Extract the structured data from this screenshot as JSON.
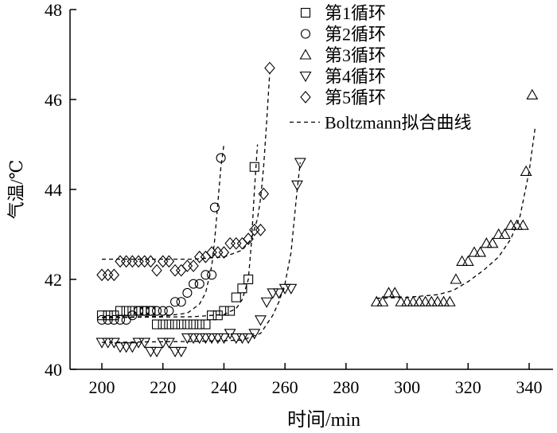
{
  "chart_data": {
    "type": "scatter",
    "xlabel": "时间/min",
    "ylabel": "气温/℃",
    "xlim": [
      190,
      350
    ],
    "ylim": [
      40,
      48
    ],
    "xticks": [
      200,
      220,
      240,
      260,
      280,
      300,
      320,
      340
    ],
    "yticks": [
      40,
      42,
      44,
      46,
      48
    ],
    "grid": false,
    "legend_position": "top-right",
    "fit_label": "Boltzmann拟合曲线",
    "series": [
      {
        "name": "第1循环",
        "marker": "square",
        "points": [
          [
            200,
            41.2
          ],
          [
            202,
            41.2
          ],
          [
            204,
            41.2
          ],
          [
            206,
            41.3
          ],
          [
            208,
            41.3
          ],
          [
            210,
            41.3
          ],
          [
            212,
            41.3
          ],
          [
            214,
            41.3
          ],
          [
            216,
            41.3
          ],
          [
            218,
            41.0
          ],
          [
            220,
            41.0
          ],
          [
            222,
            41.0
          ],
          [
            224,
            41.0
          ],
          [
            226,
            41.0
          ],
          [
            228,
            41.0
          ],
          [
            230,
            41.0
          ],
          [
            232,
            41.0
          ],
          [
            234,
            41.0
          ],
          [
            236,
            41.2
          ],
          [
            238,
            41.2
          ],
          [
            240,
            41.3
          ],
          [
            242,
            41.3
          ],
          [
            244,
            41.6
          ],
          [
            246,
            41.8
          ],
          [
            248,
            42.0
          ],
          [
            250,
            44.5
          ]
        ],
        "fit": [
          [
            200,
            41.15
          ],
          [
            230,
            41.17
          ],
          [
            240,
            41.22
          ],
          [
            244,
            41.35
          ],
          [
            246,
            41.55
          ],
          [
            248,
            42.0
          ],
          [
            249,
            42.8
          ],
          [
            250,
            44.0
          ],
          [
            251,
            45.0
          ]
        ]
      },
      {
        "name": "第2循环",
        "marker": "circle",
        "points": [
          [
            200,
            41.1
          ],
          [
            202,
            41.1
          ],
          [
            204,
            41.1
          ],
          [
            206,
            41.1
          ],
          [
            208,
            41.1
          ],
          [
            210,
            41.2
          ],
          [
            212,
            41.3
          ],
          [
            214,
            41.3
          ],
          [
            216,
            41.3
          ],
          [
            218,
            41.3
          ],
          [
            220,
            41.3
          ],
          [
            222,
            41.3
          ],
          [
            224,
            41.5
          ],
          [
            226,
            41.5
          ],
          [
            228,
            41.7
          ],
          [
            230,
            41.9
          ],
          [
            232,
            41.9
          ],
          [
            234,
            42.1
          ],
          [
            236,
            42.1
          ],
          [
            237,
            43.6
          ],
          [
            239,
            44.7
          ]
        ],
        "fit": [
          [
            200,
            41.15
          ],
          [
            220,
            41.18
          ],
          [
            228,
            41.25
          ],
          [
            232,
            41.45
          ],
          [
            234,
            41.7
          ],
          [
            236,
            42.3
          ],
          [
            237,
            42.9
          ],
          [
            238,
            43.7
          ],
          [
            239,
            44.5
          ],
          [
            240,
            45.0
          ]
        ]
      },
      {
        "name": "第3循环",
        "marker": "triangle-up",
        "points": [
          [
            290,
            41.5
          ],
          [
            292,
            41.5
          ],
          [
            294,
            41.7
          ],
          [
            296,
            41.7
          ],
          [
            298,
            41.5
          ],
          [
            300,
            41.5
          ],
          [
            302,
            41.5
          ],
          [
            304,
            41.5
          ],
          [
            306,
            41.5
          ],
          [
            308,
            41.5
          ],
          [
            310,
            41.5
          ],
          [
            312,
            41.5
          ],
          [
            314,
            41.5
          ],
          [
            316,
            42.0
          ],
          [
            318,
            42.4
          ],
          [
            320,
            42.4
          ],
          [
            322,
            42.6
          ],
          [
            324,
            42.6
          ],
          [
            326,
            42.8
          ],
          [
            328,
            42.8
          ],
          [
            330,
            43.0
          ],
          [
            332,
            43.0
          ],
          [
            334,
            43.2
          ],
          [
            336,
            43.2
          ],
          [
            338,
            43.2
          ],
          [
            339,
            44.4
          ],
          [
            341,
            46.1
          ]
        ],
        "fit": [
          [
            290,
            41.58
          ],
          [
            300,
            41.6
          ],
          [
            310,
            41.66
          ],
          [
            315,
            41.75
          ],
          [
            320,
            41.95
          ],
          [
            325,
            42.2
          ],
          [
            330,
            42.5
          ],
          [
            334,
            42.9
          ],
          [
            337,
            43.4
          ],
          [
            340,
            44.4
          ],
          [
            342,
            45.4
          ]
        ]
      },
      {
        "name": "第4循环",
        "marker": "triangle-down",
        "points": [
          [
            200,
            40.6
          ],
          [
            202,
            40.6
          ],
          [
            204,
            40.6
          ],
          [
            206,
            40.5
          ],
          [
            208,
            40.5
          ],
          [
            210,
            40.5
          ],
          [
            212,
            40.6
          ],
          [
            214,
            40.6
          ],
          [
            216,
            40.4
          ],
          [
            218,
            40.4
          ],
          [
            220,
            40.6
          ],
          [
            222,
            40.6
          ],
          [
            224,
            40.4
          ],
          [
            226,
            40.4
          ],
          [
            228,
            40.7
          ],
          [
            230,
            40.7
          ],
          [
            232,
            40.7
          ],
          [
            234,
            40.7
          ],
          [
            236,
            40.7
          ],
          [
            238,
            40.7
          ],
          [
            240,
            40.7
          ],
          [
            242,
            40.8
          ],
          [
            244,
            40.7
          ],
          [
            246,
            40.7
          ],
          [
            248,
            40.7
          ],
          [
            250,
            40.8
          ],
          [
            252,
            41.1
          ],
          [
            254,
            41.5
          ],
          [
            256,
            41.7
          ],
          [
            258,
            41.7
          ],
          [
            260,
            41.8
          ],
          [
            262,
            41.8
          ],
          [
            264,
            44.1
          ],
          [
            265,
            44.6
          ]
        ],
        "fit": [
          [
            200,
            40.6
          ],
          [
            230,
            40.62
          ],
          [
            246,
            40.65
          ],
          [
            252,
            40.8
          ],
          [
            256,
            41.2
          ],
          [
            258,
            41.5
          ],
          [
            260,
            41.9
          ],
          [
            262,
            42.6
          ],
          [
            263,
            43.3
          ],
          [
            264,
            44.0
          ],
          [
            265,
            44.6
          ]
        ]
      },
      {
        "name": "第5循环",
        "marker": "diamond",
        "points": [
          [
            200,
            42.1
          ],
          [
            202,
            42.1
          ],
          [
            204,
            42.1
          ],
          [
            206,
            42.4
          ],
          [
            208,
            42.4
          ],
          [
            210,
            42.4
          ],
          [
            212,
            42.4
          ],
          [
            214,
            42.4
          ],
          [
            216,
            42.4
          ],
          [
            218,
            42.2
          ],
          [
            220,
            42.4
          ],
          [
            222,
            42.4
          ],
          [
            224,
            42.2
          ],
          [
            226,
            42.2
          ],
          [
            228,
            42.3
          ],
          [
            230,
            42.3
          ],
          [
            232,
            42.5
          ],
          [
            234,
            42.5
          ],
          [
            236,
            42.6
          ],
          [
            238,
            42.6
          ],
          [
            240,
            42.6
          ],
          [
            242,
            42.8
          ],
          [
            244,
            42.8
          ],
          [
            246,
            42.8
          ],
          [
            248,
            42.9
          ],
          [
            250,
            43.1
          ],
          [
            252,
            43.1
          ],
          [
            253,
            43.9
          ],
          [
            255,
            46.7
          ]
        ],
        "fit": [
          [
            200,
            42.45
          ],
          [
            230,
            42.45
          ],
          [
            240,
            42.5
          ],
          [
            246,
            42.65
          ],
          [
            249,
            42.9
          ],
          [
            251,
            43.35
          ],
          [
            252,
            43.8
          ],
          [
            253,
            44.5
          ],
          [
            254,
            45.5
          ],
          [
            255,
            46.6
          ]
        ]
      }
    ]
  }
}
